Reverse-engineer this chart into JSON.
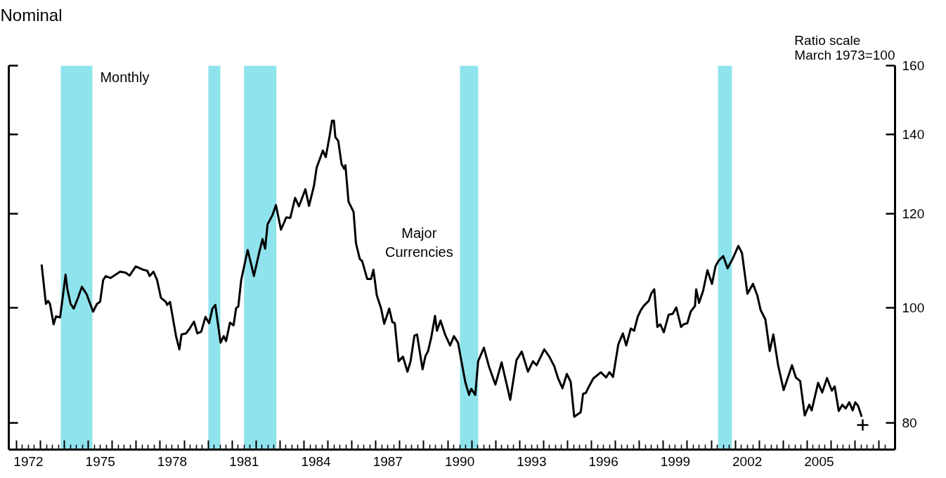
{
  "chart_data": {
    "type": "line",
    "title": "Nominal",
    "ylabel": "Ratio scale\nMarch 1973=100",
    "annotations": [
      "Monthly"
    ],
    "log": true,
    "xlim": [
      1971.68,
      2008.67
    ],
    "ylim": [
      76,
      160
    ],
    "xticks": [
      {
        "value": 1972,
        "label": null
      },
      {
        "value": 1973,
        "label": null
      },
      {
        "value": 1974,
        "label": null
      },
      {
        "value": 1975,
        "label": null
      },
      {
        "value": 1976,
        "label": null
      },
      {
        "value": 1977,
        "label": null
      },
      {
        "value": 1978,
        "label": null
      },
      {
        "value": 1979,
        "label": null
      },
      {
        "value": 1980,
        "label": null
      },
      {
        "value": 1981,
        "label": null
      },
      {
        "value": 1982,
        "label": null
      },
      {
        "value": 1983,
        "label": null
      },
      {
        "value": 1984,
        "label": null
      },
      {
        "value": 1985,
        "label": null
      },
      {
        "value": 1986,
        "label": null
      },
      {
        "value": 1987,
        "label": null
      },
      {
        "value": 1988,
        "label": null
      },
      {
        "value": 1989,
        "label": null
      },
      {
        "value": 1990,
        "label": null
      },
      {
        "value": 1991,
        "label": null
      },
      {
        "value": 1992,
        "label": null
      },
      {
        "value": 1993,
        "label": null
      },
      {
        "value": 1994,
        "label": null
      },
      {
        "value": 1995,
        "label": null
      },
      {
        "value": 1996,
        "label": null
      },
      {
        "value": 1997,
        "label": null
      },
      {
        "value": 1998,
        "label": null
      },
      {
        "value": 1999,
        "label": null
      },
      {
        "value": 2000,
        "label": null
      },
      {
        "value": 2001,
        "label": null
      },
      {
        "value": 2002,
        "label": null
      },
      {
        "value": 2003,
        "label": null
      },
      {
        "value": 2004,
        "label": null
      },
      {
        "value": 2005,
        "label": null
      },
      {
        "value": 2006,
        "label": null
      },
      {
        "value": 2007,
        "label": null
      },
      {
        "value": 2008,
        "label": null
      },
      {
        "value": 1972.5,
        "label": "1972"
      },
      {
        "value": 1975.5,
        "label": "1975"
      },
      {
        "value": 1978.5,
        "label": "1978"
      },
      {
        "value": 1981.5,
        "label": "1981"
      },
      {
        "value": 1984.5,
        "label": "1984"
      },
      {
        "value": 1987.5,
        "label": "1987"
      },
      {
        "value": 1990.5,
        "label": "1990"
      },
      {
        "value": 1993.5,
        "label": "1993"
      },
      {
        "value": 1996.5,
        "label": "1996"
      },
      {
        "value": 1999.5,
        "label": "1999"
      },
      {
        "value": 2002.5,
        "label": "2002"
      },
      {
        "value": 2005.5,
        "label": "2005"
      }
    ],
    "yticks": [
      80,
      100,
      120,
      140,
      160
    ],
    "bands": [
      {
        "axis": "x",
        "from": 1973.85,
        "to": 1975.17,
        "color": "#8fe3ec"
      },
      {
        "axis": "x",
        "from": 1980.01,
        "to": 1980.51,
        "color": "#8fe3ec"
      },
      {
        "axis": "x",
        "from": 1981.5,
        "to": 1982.85,
        "color": "#8fe3ec"
      },
      {
        "axis": "x",
        "from": 1990.51,
        "to": 1991.27,
        "color": "#8fe3ec"
      },
      {
        "axis": "x",
        "from": 2001.28,
        "to": 2001.86,
        "color": "#8fe3ec"
      }
    ],
    "series": [
      {
        "name": "Major Currencies",
        "color": "#000000",
        "marker": "none",
        "line_style": "solid",
        "x": [
          1973.05,
          1973.23,
          1973.32,
          1973.4,
          1973.55,
          1973.65,
          1973.82,
          1973.92,
          1974.05,
          1974.13,
          1974.26,
          1974.39,
          1974.57,
          1974.73,
          1974.93,
          1975.2,
          1975.36,
          1975.49,
          1975.62,
          1975.73,
          1975.93,
          1976.33,
          1976.56,
          1976.72,
          1976.98,
          1977.3,
          1977.46,
          1977.56,
          1977.72,
          1977.87,
          1978.03,
          1978.24,
          1978.29,
          1978.41,
          1978.66,
          1978.8,
          1978.89,
          1979.08,
          1979.23,
          1979.41,
          1979.55,
          1979.71,
          1979.89,
          1980.04,
          1980.18,
          1980.3,
          1980.52,
          1980.65,
          1980.75,
          1980.91,
          1981.06,
          1981.17,
          1981.26,
          1981.38,
          1981.65,
          1981.8,
          1981.91,
          1982.12,
          1982.27,
          1982.38,
          1982.48,
          1982.69,
          1982.83,
          1983.04,
          1983.26,
          1983.43,
          1983.63,
          1983.79,
          1984.06,
          1984.21,
          1984.42,
          1984.53,
          1984.79,
          1984.91,
          1985.07,
          1985.17,
          1985.25,
          1985.31,
          1985.43,
          1985.57,
          1985.68,
          1985.73,
          1985.86,
          1986.07,
          1986.17,
          1986.33,
          1986.43,
          1986.64,
          1986.8,
          1986.9,
          1987.04,
          1987.22,
          1987.35,
          1987.56,
          1987.69,
          1987.79,
          1987.95,
          1988.13,
          1988.32,
          1988.45,
          1988.61,
          1988.72,
          1988.95,
          1989.07,
          1989.18,
          1989.31,
          1989.47,
          1989.55,
          1989.7,
          1989.89,
          1990.1,
          1990.26,
          1990.43,
          1990.73,
          1990.89,
          1990.98,
          1991.15,
          1991.27,
          1991.51,
          1991.72,
          1991.99,
          1992.25,
          1992.61,
          1992.87,
          1993.09,
          1993.35,
          1993.56,
          1993.71,
          1994.03,
          1994.24,
          1994.45,
          1994.61,
          1994.79,
          1994.97,
          1995.13,
          1995.28,
          1995.55,
          1995.65,
          1995.76,
          1995.91,
          1996.07,
          1996.39,
          1996.61,
          1996.75,
          1996.9,
          1997.12,
          1997.31,
          1997.45,
          1997.64,
          1997.78,
          1997.93,
          1998.06,
          1998.18,
          1998.39,
          1998.5,
          1998.62,
          1998.75,
          1998.87,
          1999.02,
          1999.22,
          1999.39,
          1999.54,
          1999.74,
          1999.85,
          2000.0,
          2000.14,
          2000.32,
          2000.37,
          2000.49,
          2000.66,
          2000.84,
          2001.03,
          2001.18,
          2001.32,
          2001.5,
          2001.68,
          2001.9,
          2002.13,
          2002.28,
          2002.51,
          2002.74,
          2002.92,
          2003.06,
          2003.26,
          2003.44,
          2003.59,
          2003.79,
          2004.02,
          2004.37,
          2004.53,
          2004.71,
          2004.9,
          2005.09,
          2005.19,
          2005.46,
          2005.63,
          2005.83,
          2006.03,
          2006.15,
          2006.32,
          2006.47,
          2006.61,
          2006.76,
          2006.9,
          2007.01,
          2007.13,
          2007.28
        ],
        "values": [
          108.8,
          100.8,
          101.4,
          100.8,
          96.9,
          98.4,
          98.2,
          101.7,
          106.7,
          103.6,
          100.8,
          99.9,
          102.0,
          104.2,
          102.7,
          99.3,
          100.8,
          101.2,
          105.6,
          106.4,
          106.0,
          107.3,
          107.1,
          106.5,
          108.4,
          107.7,
          107.5,
          106.4,
          107.3,
          105.6,
          102.0,
          101.2,
          100.6,
          101.2,
          94.7,
          92.3,
          95.0,
          95.2,
          96.1,
          97.4,
          95.2,
          95.5,
          98.3,
          97.1,
          99.9,
          100.6,
          93.5,
          94.7,
          93.8,
          97.2,
          96.7,
          100.0,
          100.3,
          105.6,
          111.9,
          108.8,
          106.4,
          111.1,
          114.3,
          112.2,
          117.6,
          119.8,
          122.1,
          116.4,
          119.2,
          119.1,
          123.8,
          121.8,
          125.9,
          121.9,
          126.8,
          131.3,
          135.7,
          134.0,
          139.6,
          143.8,
          143.8,
          139.3,
          138.3,
          132.2,
          131.0,
          131.9,
          122.9,
          120.5,
          113.4,
          110.0,
          109.5,
          105.8,
          105.8,
          107.7,
          102.5,
          99.9,
          97.0,
          99.9,
          97.3,
          97.1,
          90.2,
          91.0,
          88.4,
          90.2,
          94.8,
          95.0,
          88.8,
          91.1,
          92.0,
          94.4,
          98.5,
          95.7,
          97.6,
          95.0,
          93.0,
          94.7,
          93.5,
          86.7,
          84.5,
          85.5,
          84.5,
          90.2,
          92.6,
          89.3,
          86.2,
          90.0,
          83.7,
          90.4,
          91.9,
          88.4,
          90.2,
          89.5,
          92.3,
          91.0,
          89.3,
          87.2,
          85.6,
          88.0,
          86.7,
          81.0,
          81.7,
          84.7,
          84.8,
          86.0,
          87.2,
          88.3,
          87.4,
          88.3,
          87.5,
          93.2,
          95.2,
          93.0,
          96.1,
          95.7,
          98.3,
          99.6,
          100.4,
          101.4,
          102.9,
          103.7,
          96.4,
          96.9,
          95.4,
          98.7,
          98.9,
          100.1,
          96.4,
          96.9,
          97.1,
          99.3,
          100.4,
          103.7,
          101.0,
          103.4,
          107.6,
          104.8,
          108.5,
          109.7,
          110.6,
          108.0,
          110.1,
          112.8,
          111.3,
          102.8,
          104.8,
          102.5,
          99.6,
          97.8,
          92.0,
          95.0,
          89.5,
          85.3,
          89.5,
          87.4,
          86.8,
          81.2,
          82.9,
          82.0,
          86.5,
          84.9,
          87.3,
          85.2,
          85.9,
          81.9,
          82.9,
          82.3,
          83.3,
          82.0,
          83.3,
          82.7,
          81.0
        ]
      },
      {
        "type": "scatter",
        "color": "#000000",
        "marker": "cross",
        "x": [
          2007.32
        ],
        "values": [
          79.7
        ]
      }
    ]
  }
}
